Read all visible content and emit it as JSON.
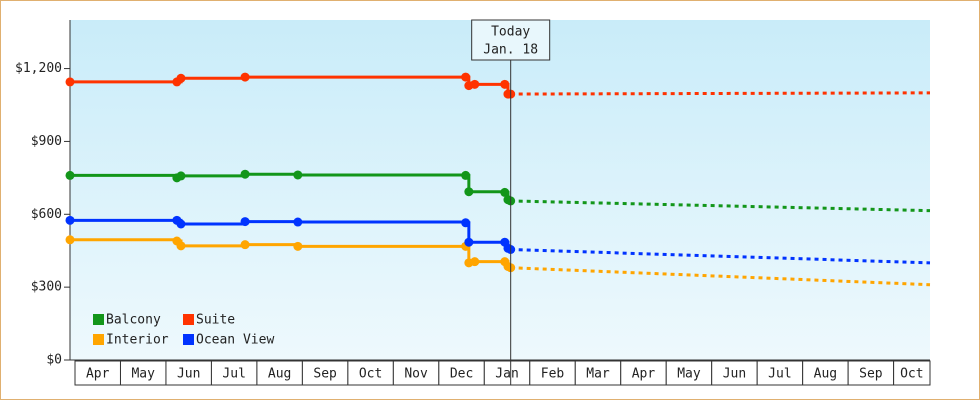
{
  "chart_data": {
    "type": "step-line",
    "months": [
      "Apr",
      "May",
      "Jun",
      "Jul",
      "Aug",
      "Sep",
      "Oct",
      "Nov",
      "Dec",
      "Jan",
      "Feb",
      "Mar",
      "Apr",
      "May",
      "Jun",
      "Jul",
      "Aug",
      "Sep",
      "Oct"
    ],
    "xlim": [
      -0.11,
      18.8
    ],
    "ylim": [
      0,
      1400
    ],
    "yticks": [
      {
        "value": 0,
        "label": "$0"
      },
      {
        "value": 300,
        "label": "$300"
      },
      {
        "value": 600,
        "label": "$600"
      },
      {
        "value": 900,
        "label": "$900"
      },
      {
        "value": 1200,
        "label": "$1,200"
      }
    ],
    "today": {
      "x": 9.58,
      "label": "Today",
      "date": "Jan. 18"
    },
    "legend": "lower-left",
    "series": [
      {
        "name": "Balcony",
        "color": "#13961a",
        "x": [
          -0.11,
          2.24,
          2.33,
          3.74,
          4.9,
          8.59,
          8.66,
          9.45,
          9.52,
          9.58
        ],
        "values": [
          760,
          750,
          758,
          765,
          762,
          760,
          693,
          690,
          660,
          655
        ],
        "forecast": {
          "x": [
            9.58,
            18.8
          ],
          "values": [
            655,
            615
          ]
        }
      },
      {
        "name": "Suite",
        "color": "#ff3300",
        "x": [
          -0.11,
          2.24,
          2.33,
          3.74,
          8.59,
          8.66,
          8.79,
          9.45,
          9.52,
          9.58
        ],
        "values": [
          1145,
          1145,
          1160,
          1165,
          1165,
          1130,
          1135,
          1135,
          1095,
          1095
        ],
        "forecast": {
          "x": [
            9.58,
            18.8
          ],
          "values": [
            1095,
            1100
          ]
        }
      },
      {
        "name": "Interior",
        "color": "#ffa500",
        "x": [
          -0.11,
          2.24,
          2.33,
          3.74,
          4.9,
          8.59,
          8.66,
          8.79,
          9.45,
          9.52,
          9.58
        ],
        "values": [
          495,
          490,
          470,
          475,
          468,
          468,
          400,
          405,
          405,
          385,
          380
        ],
        "forecast": {
          "x": [
            9.58,
            18.8
          ],
          "values": [
            380,
            310
          ]
        }
      },
      {
        "name": "Ocean View",
        "color": "#0033ff",
        "x": [
          -0.11,
          2.24,
          2.33,
          3.74,
          4.9,
          8.59,
          8.66,
          9.45,
          9.52,
          9.58
        ],
        "values": [
          575,
          575,
          560,
          570,
          568,
          565,
          485,
          485,
          460,
          455
        ],
        "forecast": {
          "x": [
            9.58,
            18.8
          ],
          "values": [
            455,
            400
          ]
        }
      }
    ]
  }
}
